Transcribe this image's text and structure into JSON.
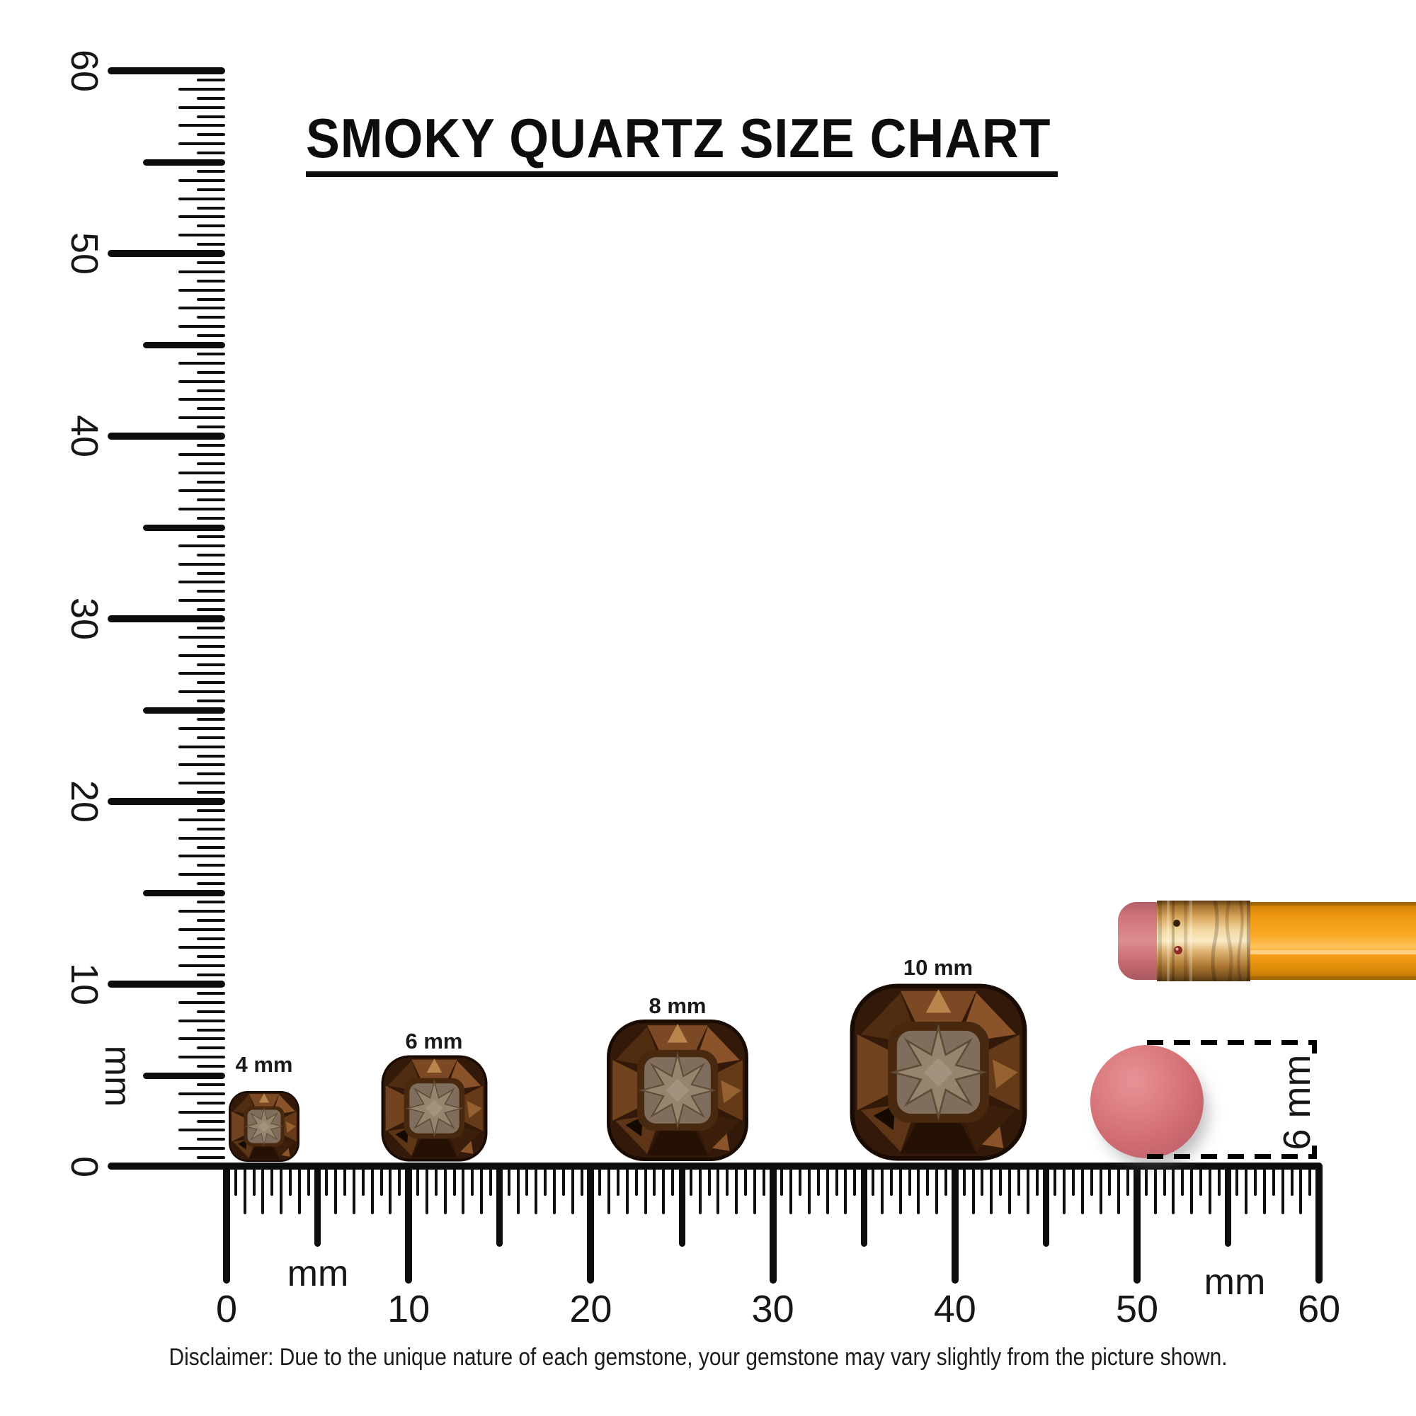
{
  "title": "SMOKY QUARTZ SIZE CHART",
  "rulers": {
    "vertical": {
      "tick_labels": [
        "60",
        "50",
        "40",
        "30",
        "20",
        "10",
        "0"
      ],
      "unit_label": "mm",
      "range_mm": [
        0,
        60
      ],
      "tick_step_mm": 0.5
    },
    "horizontal": {
      "tick_labels": [
        "0",
        "10",
        "20",
        "30",
        "40",
        "50",
        "60"
      ],
      "unit_label_left": "mm",
      "unit_label_right": "mm",
      "range_mm": [
        0,
        60
      ],
      "tick_step_mm": 0.5
    }
  },
  "gems": [
    {
      "label": "4 mm",
      "size_mm": 4
    },
    {
      "label": "6 mm",
      "size_mm": 6
    },
    {
      "label": "8 mm",
      "size_mm": 8
    },
    {
      "label": "10 mm",
      "size_mm": 10
    }
  ],
  "gem_description": "smoky quartz cushion-cut gemstone",
  "pencil": {
    "eraser_annotation_label": "6 mm",
    "eraser_diameter_mm": 6
  },
  "disclaimer": "Disclaimer: Due to the unique nature of each gemstone, your gemstone may vary slightly from the picture shown.",
  "colors": {
    "ink": "#0d0d0d",
    "gem_dark": "#190b02",
    "gem_mid_brown": "#7b4a24",
    "gem_table": "#7f6e5d",
    "gem_star": "#95846e",
    "pencil_body_orange": "#f09a14",
    "pencil_ferrule_gold": "#e3b873",
    "pencil_eraser_pink": "#d67a7e",
    "eraser_face_pink": "#d26f74"
  }
}
